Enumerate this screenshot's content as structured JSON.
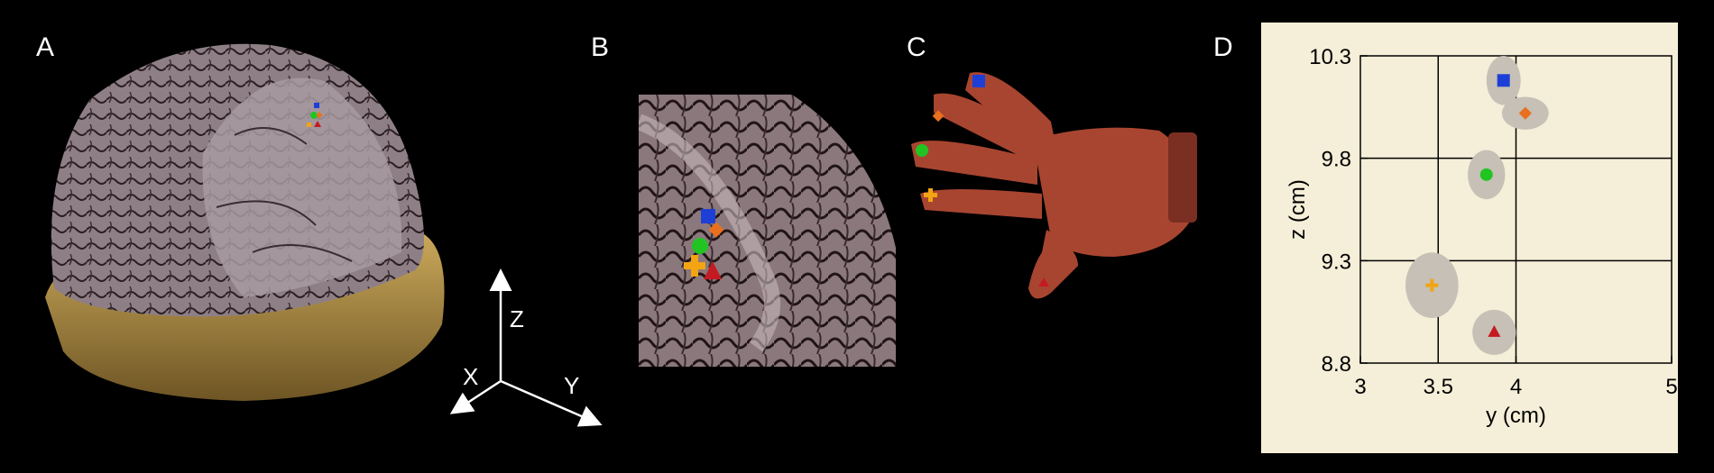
{
  "panels": {
    "a": {
      "letter": "A"
    },
    "b": {
      "letter": "B"
    },
    "c": {
      "letter": "C"
    },
    "d": {
      "letter": "D"
    }
  },
  "axes_gizmo": {
    "z": "Z",
    "x": "X",
    "y": "Y"
  },
  "colors": {
    "background": "#000000",
    "chart_bg": "#f5eed8",
    "blob": "#c6c0b6",
    "blue": "#1e3fd6",
    "orange": "#e8701e",
    "green": "#22c422",
    "yellow": "#f2a412",
    "red": "#c41a22",
    "skin": "#b5472e",
    "bone": "#a98a4e",
    "brain": "#8e7f86"
  },
  "markers": [
    {
      "name": "square",
      "color": "blue"
    },
    {
      "name": "diamond",
      "color": "orange"
    },
    {
      "name": "circle",
      "color": "green"
    },
    {
      "name": "cross",
      "color": "yellow"
    },
    {
      "name": "triangle",
      "color": "red"
    }
  ],
  "chart_data": {
    "type": "scatter",
    "xlabel": "y (cm)",
    "ylabel": "z (cm)",
    "xlim": [
      3,
      5
    ],
    "ylim": [
      8.8,
      10.3
    ],
    "xticks": [
      3,
      3.5,
      4,
      5
    ],
    "xtick_labels": [
      "3",
      "3.5",
      "4",
      "5"
    ],
    "yticks": [
      8.8,
      9.3,
      9.8,
      10.3
    ],
    "ytick_labels": [
      "8.8",
      "9.3",
      "9.8",
      "10.3"
    ],
    "grid": true,
    "series": [
      {
        "marker": "square",
        "color": "blue",
        "x": 3.92,
        "y": 10.18,
        "spread_x": 0.11,
        "spread_y": 0.12
      },
      {
        "marker": "diamond",
        "color": "orange",
        "x": 4.06,
        "y": 10.02,
        "spread_x": 0.15,
        "spread_y": 0.08
      },
      {
        "marker": "circle",
        "color": "green",
        "x": 3.81,
        "y": 9.72,
        "spread_x": 0.12,
        "spread_y": 0.12
      },
      {
        "marker": "cross",
        "color": "yellow",
        "x": 3.46,
        "y": 9.18,
        "spread_x": 0.17,
        "spread_y": 0.16
      },
      {
        "marker": "triangle",
        "color": "red",
        "x": 3.86,
        "y": 8.95,
        "spread_x": 0.14,
        "spread_y": 0.11
      }
    ]
  }
}
